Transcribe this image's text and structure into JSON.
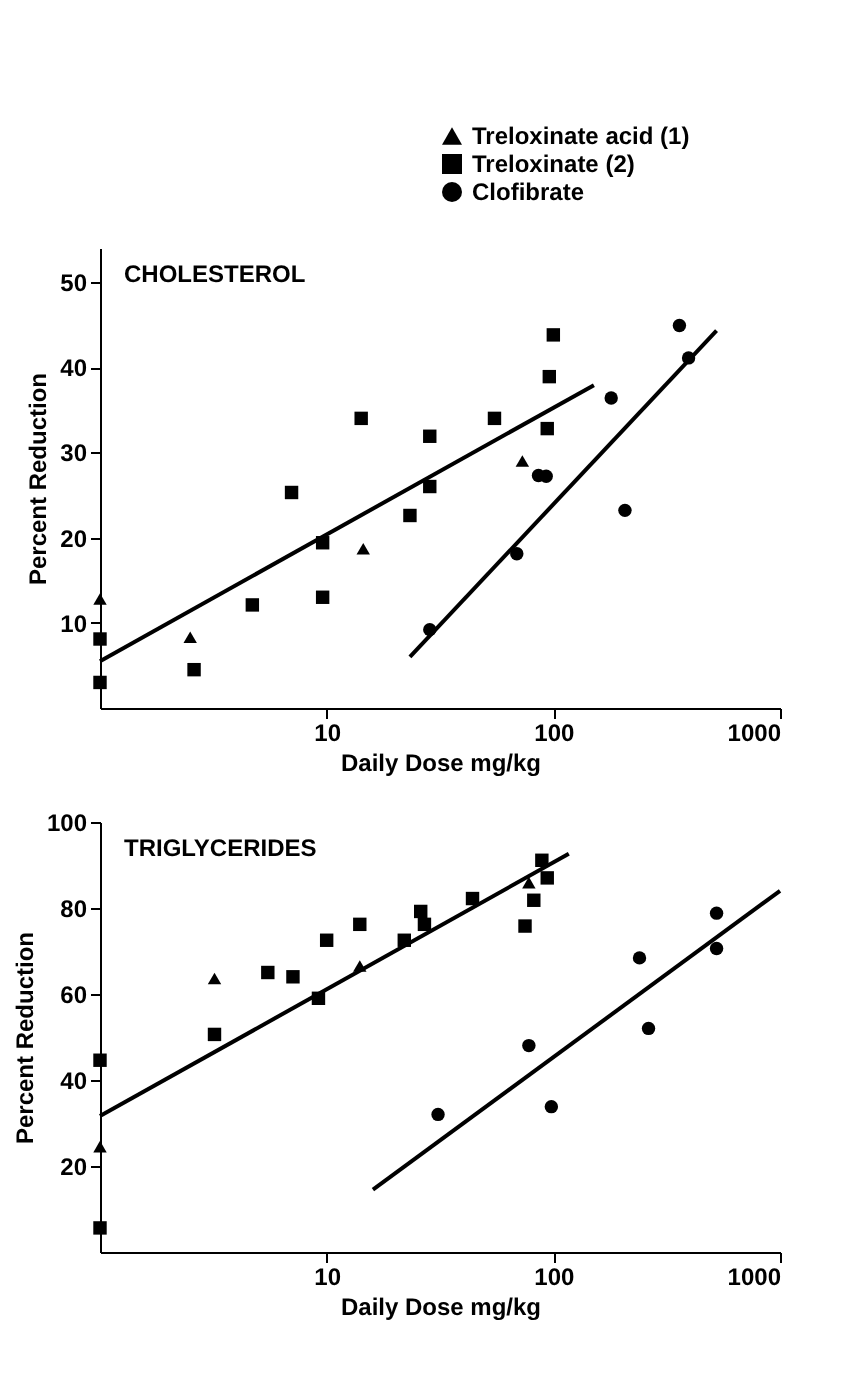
{
  "chart_data": [
    {
      "type": "scatter",
      "title": "CHOLESTEROL",
      "xlabel": "Daily Dose mg/kg",
      "ylabel": "Percent Reduction",
      "log": "x",
      "xlim": [
        1,
        1000
      ],
      "xticks": [
        10,
        100,
        1000
      ],
      "ylim": [
        0,
        54
      ],
      "yticks": [
        10,
        20,
        30,
        40,
        50
      ],
      "grid": false,
      "legend": "top right",
      "series": [
        {
          "name": "Treloxinate acid (1)",
          "marker": "triangle",
          "color": "#000000",
          "x": [
            1,
            2.5,
            14.5,
            73
          ],
          "values": [
            12.8,
            8.3,
            18.7,
            29
          ]
        },
        {
          "name": "Treloxinate (2)",
          "marker": "square",
          "color": "#000000",
          "x": [
            14.2,
            55,
            94,
            100,
            96,
            28.5,
            7,
            1,
            1,
            2.6,
            4.7,
            9.6,
            9.6,
            23.3,
            28.5
          ],
          "values": [
            34,
            34,
            32.8,
            43.8,
            38.9,
            31.9,
            25.3,
            8.1,
            3,
            4.5,
            12.1,
            19.4,
            13,
            22.6,
            26
          ]
        },
        {
          "name": "Clofibrate",
          "marker": "circle",
          "color": "#000000",
          "x": [
            28.5,
            69,
            86,
            93,
            207,
            180,
            360,
            395
          ],
          "values": [
            9.2,
            18.1,
            27.3,
            27.2,
            23.2,
            36.4,
            44.9,
            41.1
          ]
        },
        {
          "type": "line",
          "marker": "none",
          "color": "#000000",
          "x": [
            1,
            151
          ],
          "values": [
            5.5,
            37.9
          ]
        },
        {
          "type": "line",
          "marker": "none",
          "color": "#000000",
          "x": [
            23.3,
            525
          ],
          "values": [
            6,
            44.3
          ]
        }
      ]
    },
    {
      "type": "scatter",
      "title": "TRIGLYCERIDES",
      "xlabel": "Daily Dose mg/kg",
      "ylabel": "Percent Reduction",
      "log": "x",
      "xlim": [
        1,
        1000
      ],
      "xticks": [
        10,
        100,
        1000
      ],
      "ylim": [
        0,
        100
      ],
      "yticks": [
        20,
        40,
        60,
        80,
        100
      ],
      "grid": false,
      "series": [
        {
          "marker": "triangle",
          "color": "#000000",
          "x": [
            3.2,
            1,
            14,
            78
          ],
          "values": [
            63.6,
            24.5,
            66.5,
            85.9
          ]
        },
        {
          "marker": "square",
          "color": "#000000",
          "x": [
            5.5,
            7.1,
            10,
            14,
            22,
            26,
            27,
            44,
            75,
            82,
            89,
            94,
            1,
            1,
            3.2,
            9.2
          ],
          "values": [
            65,
            64,
            72.5,
            76.2,
            72.5,
            79.2,
            76.2,
            82.2,
            75.8,
            81.8,
            91.1,
            87,
            44.6,
            5.6,
            50.6,
            59
          ]
        },
        {
          "marker": "circle",
          "color": "#000000",
          "x": [
            31,
            78,
            98,
            263,
            240,
            525,
            525
          ],
          "values": [
            32,
            48,
            33.8,
            52,
            68.4,
            78.8,
            70.6
          ]
        },
        {
          "type": "line",
          "marker": "none",
          "color": "#000000",
          "x": [
            1,
            117
          ],
          "values": [
            31.6,
            92.6
          ]
        },
        {
          "type": "line",
          "marker": "none",
          "color": "#000000",
          "x": [
            16,
            1000
          ],
          "values": [
            14.5,
            84
          ]
        }
      ]
    }
  ]
}
